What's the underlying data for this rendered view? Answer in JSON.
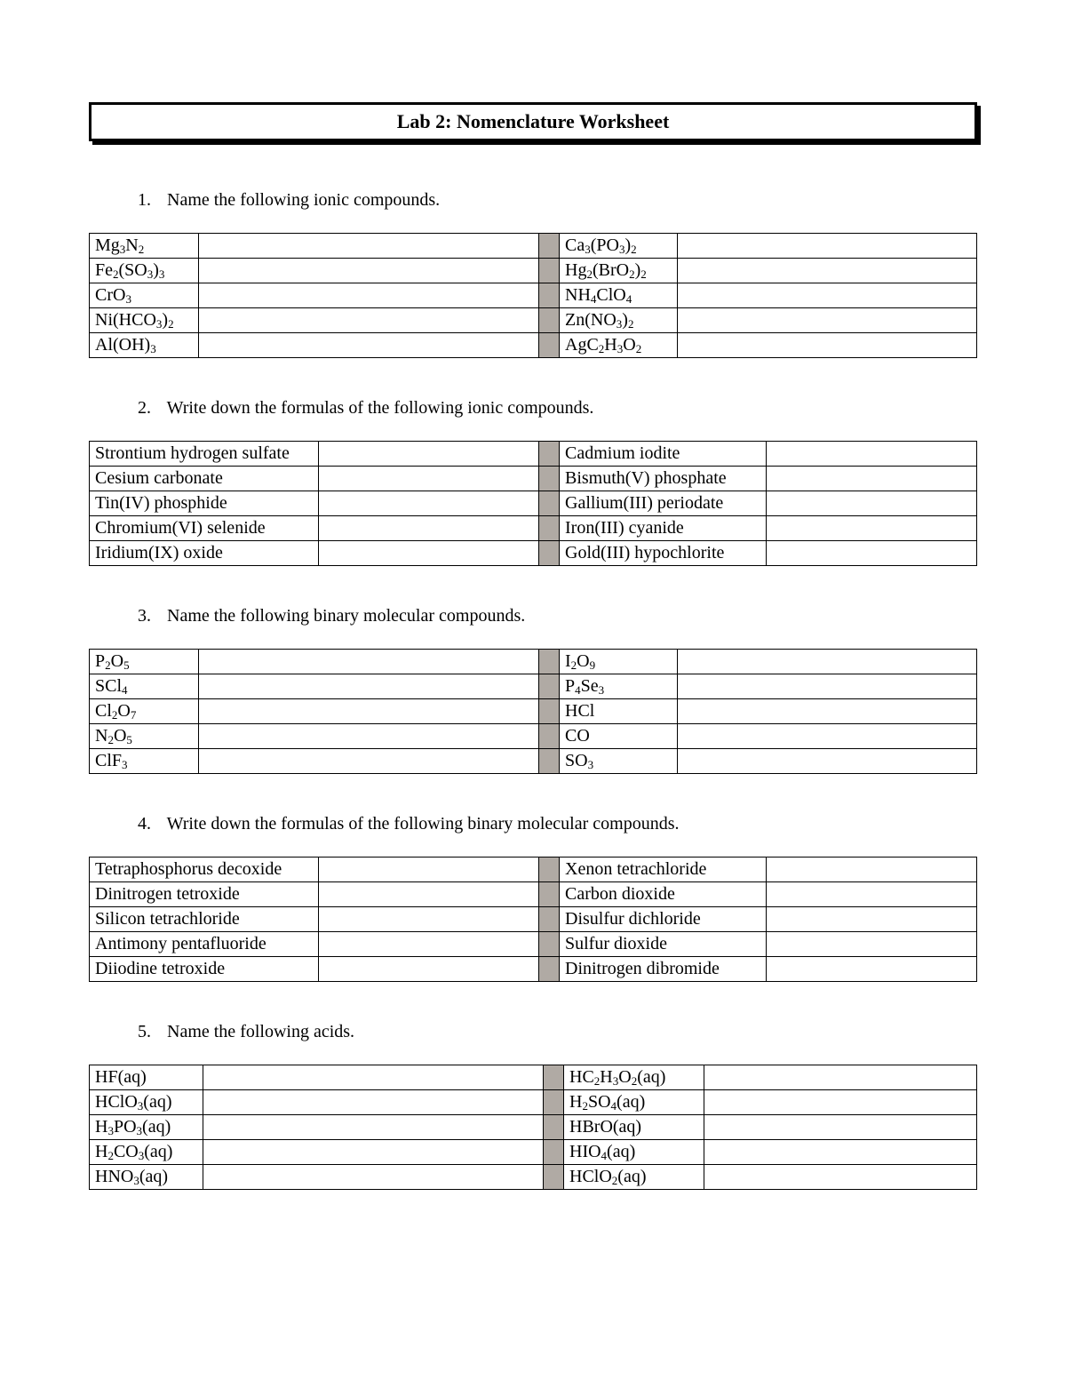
{
  "title_prefix": "Lab 2: ",
  "title_main": "Nomenclature Worksheet",
  "q1_num": "1.",
  "q1_text": "Name the following ionic compounds.",
  "q1_left": [
    "Mg<sub>3</sub>N<sub>2</sub>",
    "Fe<sub>2</sub>(SO<sub>3</sub>)<sub>3</sub>",
    "CrO<sub>3</sub>",
    "Ni(HCO<sub>3</sub>)<sub>2</sub>",
    "Al(OH)<sub>3</sub>"
  ],
  "q1_right": [
    "Ca<sub>3</sub>(PO<sub>3</sub>)<sub>2</sub>",
    "Hg<sub>2</sub>(BrO<sub>2</sub>)<sub>2</sub>",
    "NH<sub>4</sub>ClO<sub>4</sub>",
    "Zn(NO<sub>3</sub>)<sub>2</sub>",
    "AgC<sub>2</sub>H<sub>3</sub>O<sub>2</sub>"
  ],
  "q2_num": "2.",
  "q2_text": "Write down the formulas of the following ionic compounds.",
  "q2_left": [
    "Strontium hydrogen sulfate",
    "Cesium carbonate",
    "Tin(IV) phosphide",
    "Chromium(VI) selenide",
    "Iridium(IX) oxide"
  ],
  "q2_right": [
    "Cadmium iodite",
    "Bismuth(V) phosphate",
    "Gallium(III) periodate",
    "Iron(III) cyanide",
    "Gold(III) hypochlorite"
  ],
  "q3_num": "3.",
  "q3_text": "Name the following binary molecular compounds.",
  "q3_left": [
    "P<sub>2</sub>O<sub>5</sub>",
    "SCl<sub>4</sub>",
    "Cl<sub>2</sub>O<sub>7</sub>",
    "N<sub>2</sub>O<sub>5</sub>",
    "ClF<sub>3</sub>"
  ],
  "q3_right": [
    "I<sub>2</sub>O<sub>9</sub>",
    "P<sub>4</sub>Se<sub>3</sub>",
    "HCl",
    "CO",
    "SO<sub>3</sub>"
  ],
  "q4_num": "4.",
  "q4_text": "Write down the formulas of the following binary molecular compounds.",
  "q4_left": [
    "Tetraphosphorus decoxide",
    "Dinitrogen tetroxide",
    "Silicon tetrachloride",
    "Antimony pentafluoride",
    "Diiodine tetroxide"
  ],
  "q4_right": [
    "Xenon tetrachloride",
    "Carbon dioxide",
    "Disulfur dichloride",
    "Sulfur dioxide",
    "Dinitrogen dibromide"
  ],
  "q5_num": "5.",
  "q5_text": "Name the following acids.",
  "q5_left": [
    "HF(aq)",
    "HClO<sub>3</sub>(aq)",
    "H<sub>3</sub>PO<sub>3</sub>(aq)",
    "H<sub>2</sub>CO<sub>3</sub>(aq)",
    "HNO<sub>3</sub>(aq)"
  ],
  "q5_right": [
    "HC<sub>2</sub>H<sub>3</sub>O<sub>2</sub>(aq)",
    "H<sub>2</sub>SO<sub>4</sub>(aq)",
    "HBrO(aq)",
    "HIO<sub>4</sub>(aq)",
    "HClO<sub>2</sub>(aq)"
  ]
}
